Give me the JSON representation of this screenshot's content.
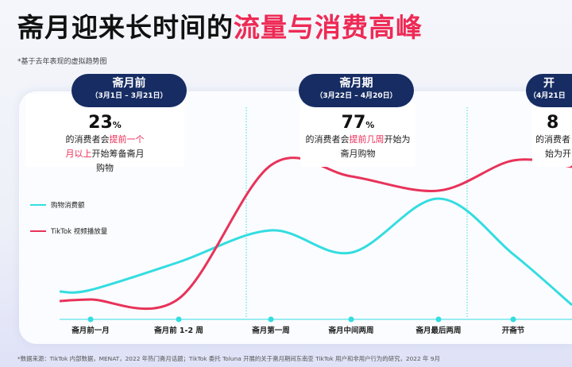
{
  "title": {
    "normal": "斋月迎来长时间的",
    "highlight": "流量与消费高峰"
  },
  "note": "*基于去年表现的虚拟趋势图",
  "cards": [
    {
      "label": "斋月前",
      "dates": "（3月1日 – 3月21日）",
      "value": "23",
      "unit": "%",
      "text_pre": "的消费者会",
      "text_hl": "提前一个月以上",
      "text_post": "开始筹备斋月购物"
    },
    {
      "label": "斋月期",
      "dates": "（3月22日 – 4月20日）",
      "value": "77",
      "unit": "%",
      "text_pre": "的消费者会",
      "text_hl": "提前几周",
      "text_post": "开始为斋月购物"
    },
    {
      "label": "开",
      "dates": "（4月21日",
      "value": "8",
      "unit": "",
      "text_pre": "的消费者",
      "text_hl": "",
      "text_post": "始为开"
    }
  ],
  "legend": [
    {
      "name": "购物消费额",
      "color": "#33dde0"
    },
    {
      "name": "TikTok 视频播放量",
      "color": "#e8335a"
    }
  ],
  "chart_data": {
    "type": "line",
    "categories": [
      "斋月前一月",
      "斋月前 1-2 周",
      "斋月第一周",
      "斋月中间两周",
      "斋月最后两周",
      "开斋节"
    ],
    "series": [
      {
        "name": "购物消费额",
        "color": "#33dde0",
        "values": [
          37,
          72,
          112,
          84,
          152,
          82
        ]
      },
      {
        "name": "TikTok 视频播放量",
        "color": "#e8335a",
        "values": [
          25,
          26,
          194,
          180,
          162,
          200
        ]
      }
    ],
    "ylim": [
      0,
      220
    ],
    "grid": false,
    "legend_position": "left"
  },
  "source": "*数据来源：TikTok 内部数据，MENAT，2022 年热门斋月话题；TikTok 委托 Toluna 开展的关于斋月期间东南亚 TikTok 用户和非用户行为的研究，2022 年 9月"
}
